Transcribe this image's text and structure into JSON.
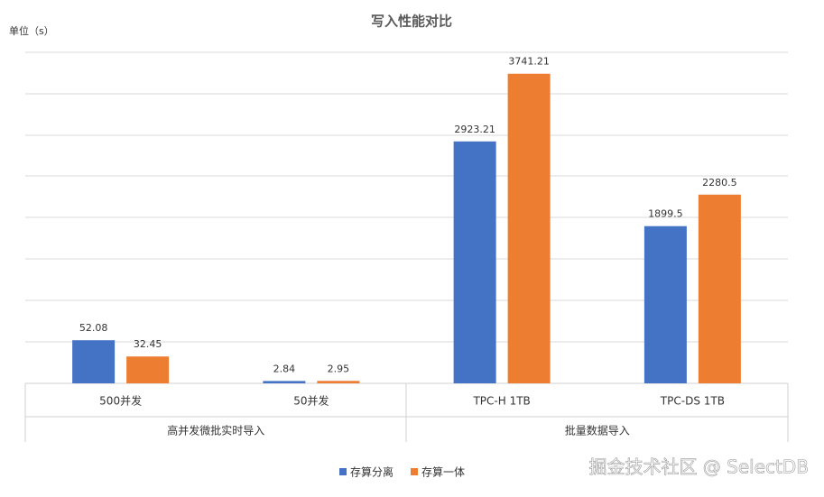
{
  "title": "写入性能对比",
  "y_unit_label": "单位（s）",
  "watermark": "掘金技术社区 @ SelectDB",
  "chart_data": [
    {
      "type": "bar",
      "group_label": "高并发微批实时导入",
      "categories": [
        "500并发",
        "50并发"
      ],
      "ylim": [
        0,
        400
      ],
      "series": [
        {
          "name": "存算分离",
          "color": "#4472c4",
          "values": [
            52.08,
            2.84
          ]
        },
        {
          "name": "存算一体",
          "color": "#ed7d31",
          "values": [
            32.45,
            2.95
          ]
        }
      ]
    },
    {
      "type": "bar",
      "group_label": "批量数据导入",
      "categories": [
        "TPC-H 1TB",
        "TPC-DS 1TB"
      ],
      "ylim": [
        0,
        4000
      ],
      "series": [
        {
          "name": "存算分离",
          "color": "#4472c4",
          "values": [
            2923.21,
            1899.5
          ]
        },
        {
          "name": "存算一体",
          "color": "#ed7d31",
          "values": [
            3741.21,
            2280.5
          ]
        }
      ]
    }
  ]
}
